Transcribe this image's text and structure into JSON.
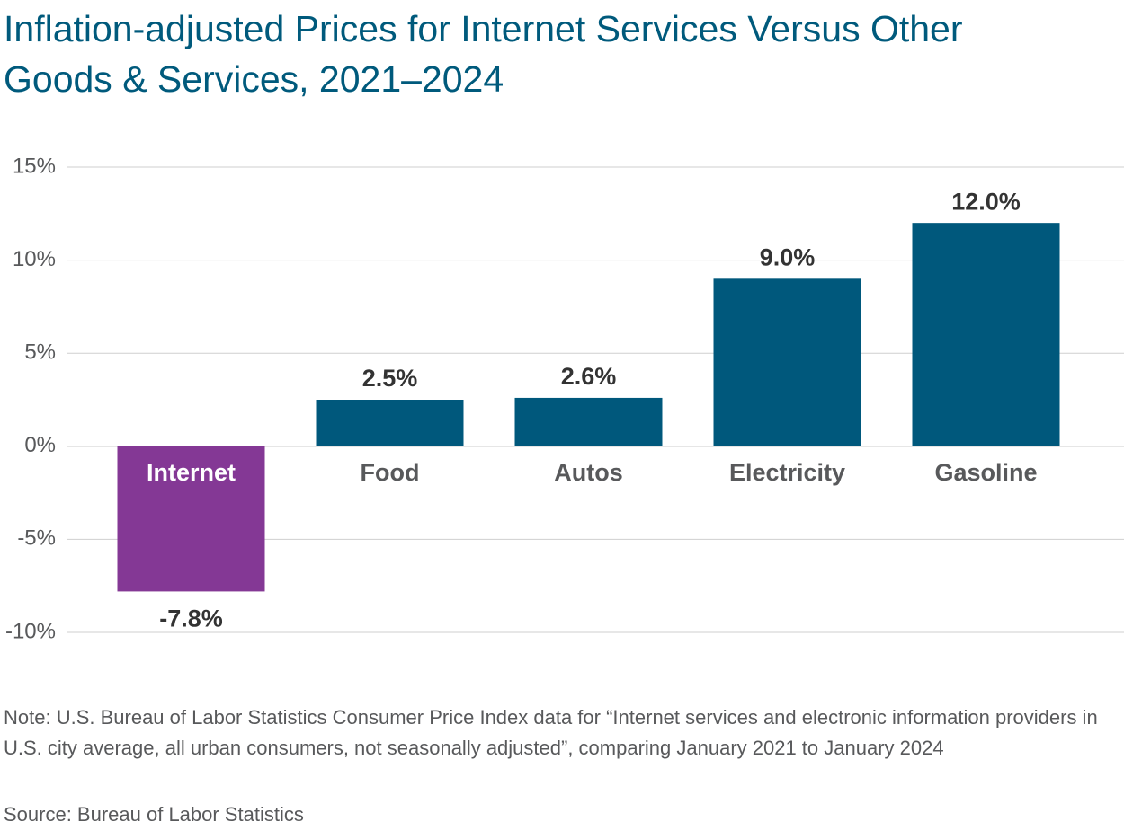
{
  "chart_data": {
    "type": "bar",
    "title": "Inflation-adjusted Prices for Internet Services Versus Other Goods & Services, 2021–2024",
    "categories": [
      "Internet",
      "Food",
      "Autos",
      "Electricity",
      "Gasoline"
    ],
    "values": [
      -7.8,
      2.5,
      2.6,
      9.0,
      12.0
    ],
    "value_labels": [
      "-7.8%",
      "2.5%",
      "2.6%",
      "9.0%",
      "12.0%"
    ],
    "colors": [
      "#843895",
      "#00587c",
      "#00587c",
      "#00587c",
      "#00587c"
    ],
    "ylim": [
      -10,
      15
    ],
    "yticks": [
      {
        "value": -10,
        "label": "-10%"
      },
      {
        "value": -5,
        "label": "-5%"
      },
      {
        "value": 0,
        "label": "0%"
      },
      {
        "value": 5,
        "label": "5%"
      },
      {
        "value": 10,
        "label": "10%"
      },
      {
        "value": 15,
        "label": "15%"
      }
    ],
    "grid": true,
    "note": "Note: U.S. Bureau of Labor Statistics Consumer Price Index data for “Internet services and electronic information providers in U.S. city average, all urban consumers, not seasonally adjusted”, comparing January 2021 to January 2024",
    "source": "Source: Bureau of Labor Statistics"
  }
}
